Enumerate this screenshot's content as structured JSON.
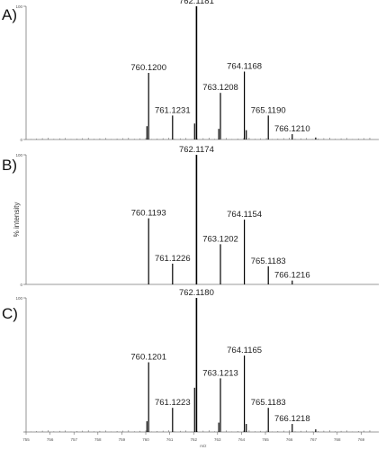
{
  "chart_data": [
    {
      "type": "bar",
      "panel_label": "A)",
      "y_tick_top": "100",
      "y_tick_bottom": "0",
      "ylabel": "",
      "xlim": [
        755,
        770
      ],
      "ylim": [
        0,
        100
      ],
      "peaks": [
        {
          "mz": 760.12,
          "intensity": 50,
          "label": "760.1200"
        },
        {
          "mz": 760.05,
          "intensity": 10,
          "label": ""
        },
        {
          "mz": 761.12,
          "intensity": 18,
          "label": "761.1231"
        },
        {
          "mz": 762.12,
          "intensity": 100,
          "label": "762.1181"
        },
        {
          "mz": 762.04,
          "intensity": 12,
          "label": ""
        },
        {
          "mz": 763.12,
          "intensity": 35,
          "label": "763.1208"
        },
        {
          "mz": 763.05,
          "intensity": 8,
          "label": ""
        },
        {
          "mz": 764.12,
          "intensity": 51,
          "label": "764.1168"
        },
        {
          "mz": 764.2,
          "intensity": 7,
          "label": ""
        },
        {
          "mz": 765.12,
          "intensity": 18,
          "label": "765.1190"
        },
        {
          "mz": 766.12,
          "intensity": 4,
          "label": "766.1210"
        },
        {
          "mz": 767.1,
          "intensity": 1.5,
          "label": ""
        }
      ]
    },
    {
      "type": "bar",
      "panel_label": "B)",
      "y_tick_top": "100",
      "y_tick_bottom": "0",
      "ylabel": "% intensity",
      "xlim": [
        755,
        770
      ],
      "ylim": [
        0,
        100
      ],
      "peaks": [
        {
          "mz": 760.12,
          "intensity": 51,
          "label": "760.1193"
        },
        {
          "mz": 761.12,
          "intensity": 16,
          "label": "761.1226"
        },
        {
          "mz": 762.12,
          "intensity": 100,
          "label": "762.1174"
        },
        {
          "mz": 763.12,
          "intensity": 31,
          "label": "763.1202"
        },
        {
          "mz": 764.12,
          "intensity": 50,
          "label": "764.1154"
        },
        {
          "mz": 765.12,
          "intensity": 14,
          "label": "765.1183"
        },
        {
          "mz": 766.12,
          "intensity": 3,
          "label": "766.1216"
        }
      ]
    },
    {
      "type": "bar",
      "panel_label": "C)",
      "y_tick_top": "100",
      "y_tick_bottom": "",
      "ylabel": "",
      "xlim": [
        755,
        770
      ],
      "ylim": [
        0,
        100
      ],
      "x_ticks": [
        "755",
        "756",
        "757",
        "758",
        "759",
        "760",
        "761",
        "762",
        "763",
        "764",
        "765",
        "766",
        "767",
        "768",
        "769"
      ],
      "x_unit": "m/z",
      "peaks": [
        {
          "mz": 760.12,
          "intensity": 52,
          "label": "760.1201"
        },
        {
          "mz": 760.05,
          "intensity": 8,
          "label": ""
        },
        {
          "mz": 761.12,
          "intensity": 18,
          "label": "761.1223"
        },
        {
          "mz": 762.12,
          "intensity": 100,
          "label": "762.1180"
        },
        {
          "mz": 762.04,
          "intensity": 33,
          "label": ""
        },
        {
          "mz": 763.12,
          "intensity": 40,
          "label": "763.1213"
        },
        {
          "mz": 763.05,
          "intensity": 7,
          "label": ""
        },
        {
          "mz": 764.12,
          "intensity": 57,
          "label": "764.1165"
        },
        {
          "mz": 764.2,
          "intensity": 6,
          "label": ""
        },
        {
          "mz": 765.12,
          "intensity": 18,
          "label": "765.1183"
        },
        {
          "mz": 766.12,
          "intensity": 6,
          "label": "766.1218"
        },
        {
          "mz": 767.1,
          "intensity": 2,
          "label": ""
        }
      ]
    }
  ]
}
